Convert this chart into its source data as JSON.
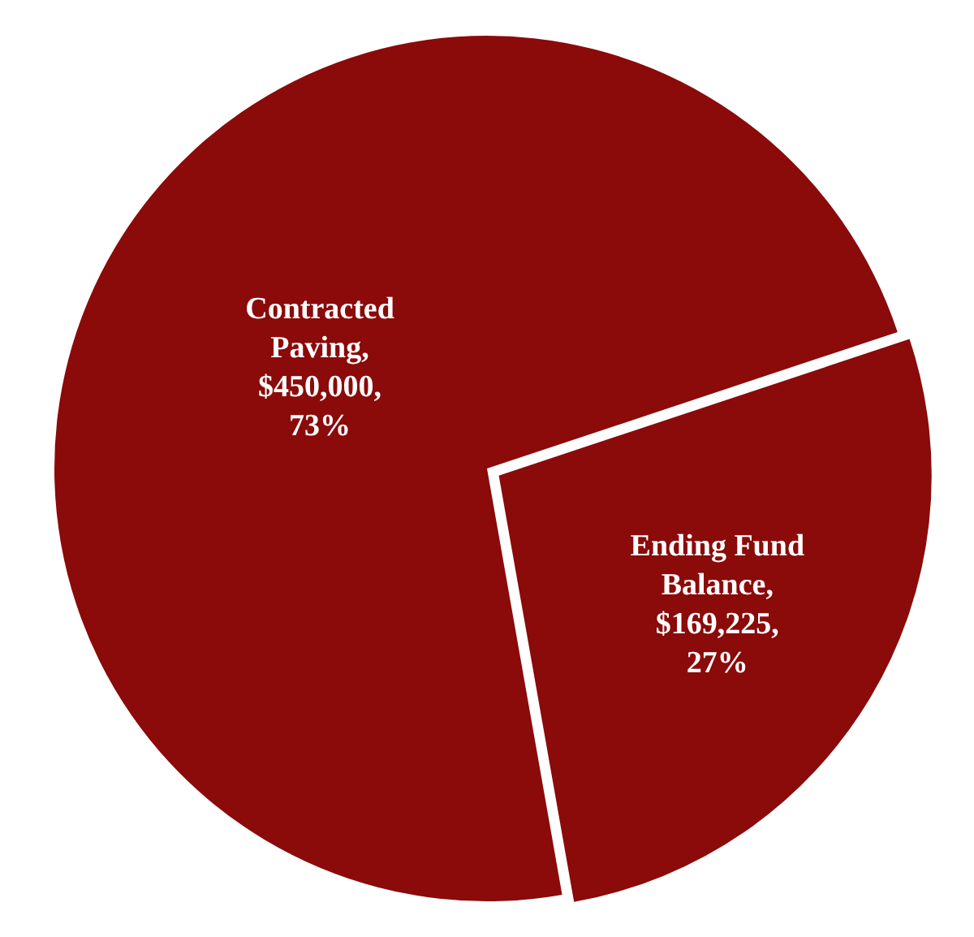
{
  "chart_data": {
    "type": "pie",
    "categories": [
      "Contracted Paving",
      "Ending Fund Balance"
    ],
    "values": [
      450000,
      169225
    ],
    "colors": [
      "#8b0a0a",
      "#8b0a0a"
    ],
    "value_labels": [
      ", $450,000, 73%",
      ", $169,225, 27%"
    ],
    "legend": false
  }
}
